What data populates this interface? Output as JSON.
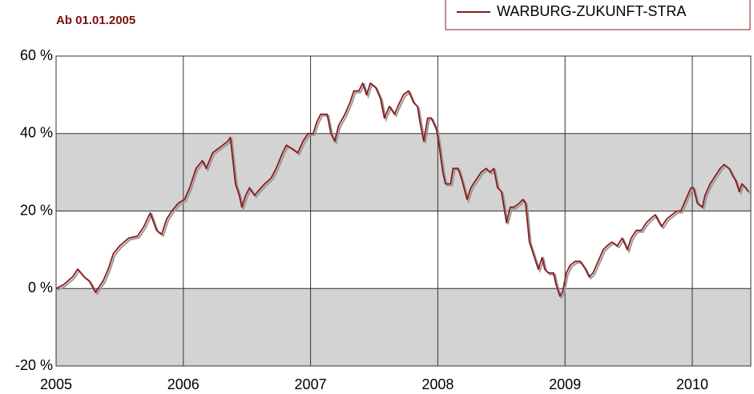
{
  "chart_data": {
    "type": "line",
    "title": "Ab 01.01.2005",
    "series": [
      {
        "name": "WARBURG-ZUKUNFT-STRA",
        "color": "#8b1a1a",
        "x": [
          2005.0,
          2005.06,
          2005.13,
          2005.17,
          2005.22,
          2005.26,
          2005.31,
          2005.37,
          2005.41,
          2005.45,
          2005.5,
          2005.57,
          2005.64,
          2005.69,
          2005.74,
          2005.79,
          2005.83,
          2005.87,
          2005.91,
          2005.96,
          2006.01,
          2006.05,
          2006.1,
          2006.15,
          2006.18,
          2006.23,
          2006.27,
          2006.31,
          2006.35,
          2006.37,
          2006.39,
          2006.41,
          2006.44,
          2006.46,
          2006.49,
          2006.52,
          2006.56,
          2006.61,
          2006.64,
          2006.69,
          2006.73,
          2006.78,
          2006.81,
          2006.86,
          2006.9,
          2006.94,
          2006.98,
          2007.02,
          2007.05,
          2007.08,
          2007.13,
          2007.16,
          2007.19,
          2007.22,
          2007.27,
          2007.31,
          2007.34,
          2007.38,
          2007.41,
          2007.44,
          2007.47,
          2007.51,
          2007.55,
          2007.58,
          2007.62,
          2007.66,
          2007.7,
          2007.73,
          2007.77,
          2007.81,
          2007.84,
          2007.86,
          2007.89,
          2007.92,
          2007.95,
          2007.99,
          2008.01,
          2008.04,
          2008.06,
          2008.1,
          2008.12,
          2008.16,
          2008.19,
          2008.23,
          2008.26,
          2008.3,
          2008.34,
          2008.38,
          2008.41,
          2008.44,
          2008.47,
          2008.5,
          2008.54,
          2008.57,
          2008.6,
          2008.64,
          2008.67,
          2008.69,
          2008.72,
          2008.74,
          2008.77,
          2008.79,
          2008.82,
          2008.84,
          2008.87,
          2008.91,
          2008.93,
          2008.96,
          2008.98,
          2009.01,
          2009.04,
          2009.08,
          2009.12,
          2009.16,
          2009.19,
          2009.22,
          2009.26,
          2009.3,
          2009.33,
          2009.37,
          2009.41,
          2009.45,
          2009.49,
          2009.52,
          2009.56,
          2009.6,
          2009.64,
          2009.67,
          2009.71,
          2009.74,
          2009.76,
          2009.8,
          2009.84,
          2009.88,
          2009.91,
          2009.95,
          2009.99,
          2010.01,
          2010.04,
          2010.08,
          2010.1,
          2010.14,
          2010.18,
          2010.22,
          2010.25,
          2010.29,
          2010.32,
          2010.34,
          2010.37,
          2010.39,
          2010.42,
          2010.44
        ],
        "values": [
          0,
          1,
          3,
          5,
          3,
          2,
          -1,
          2,
          5,
          9,
          11,
          13,
          13.5,
          16,
          19.5,
          15,
          14,
          18,
          20,
          22,
          23,
          26,
          31,
          33,
          31,
          35,
          36,
          37,
          38,
          39,
          33,
          27,
          24,
          21,
          24,
          26,
          24,
          26,
          27,
          28.5,
          31,
          35,
          37,
          36,
          35,
          38,
          40,
          40,
          43,
          45,
          45,
          40,
          38,
          42,
          45,
          48,
          51,
          51,
          53,
          50,
          53,
          52,
          49,
          44,
          47,
          45,
          48,
          50,
          51,
          48,
          47,
          43,
          38,
          44,
          44,
          41,
          37,
          30,
          27,
          27,
          31,
          31,
          28,
          23,
          26,
          28,
          30,
          31,
          30,
          31,
          26,
          25,
          17,
          21,
          21,
          22,
          23,
          22,
          12,
          10,
          7,
          5,
          8,
          5,
          4,
          4,
          1,
          -2,
          -1,
          4,
          6,
          7,
          7,
          5,
          3,
          4,
          7,
          10,
          11,
          12,
          11,
          13,
          10,
          13,
          15,
          15,
          17,
          18,
          19,
          17,
          16,
          18,
          19,
          20,
          20,
          23,
          26,
          26,
          22,
          21,
          24,
          27,
          29,
          31,
          32,
          31,
          29,
          28,
          25,
          27,
          26,
          25
        ]
      }
    ],
    "xlim": [
      2005,
      2010.46
    ],
    "xticks": [
      2005,
      2006,
      2007,
      2008,
      2009,
      2010
    ],
    "ylim": [
      -20,
      60
    ],
    "yticks": [
      {
        "value": -20,
        "label": "-20 %"
      },
      {
        "value": 0,
        "label": "0 %"
      },
      {
        "value": 20,
        "label": "20 %"
      },
      {
        "value": 40,
        "label": "40 %"
      },
      {
        "value": 60,
        "label": "60 %"
      }
    ],
    "grid": true,
    "legend": "top-right"
  }
}
